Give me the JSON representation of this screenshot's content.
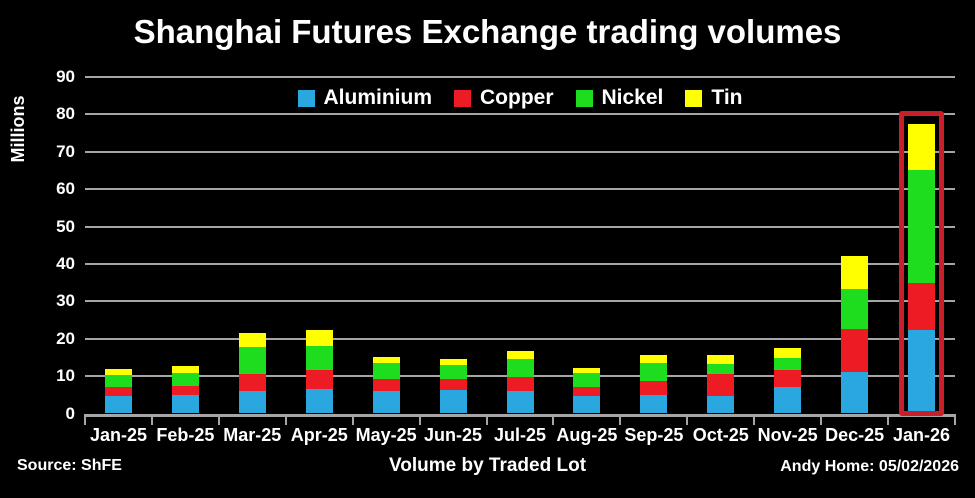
{
  "title": "Shanghai Futures Exchange trading volumes",
  "footer": {
    "source": "Source: ShFE",
    "xlabel": "Volume by Traded Lot",
    "credit": "Andy Home: 05/02/2026"
  },
  "chart_data": {
    "type": "bar",
    "stacked": true,
    "title": "Shanghai Futures Exchange trading volumes",
    "ylabel": "Millions",
    "xlabel": "Volume by Traded Lot",
    "ylim": [
      0,
      90
    ],
    "ytick_step": 10,
    "grid": true,
    "legend_position": "top-center",
    "background_color": "#000000",
    "text_color": "#ffffff",
    "grid_color": "#a6a6a6",
    "categories": [
      "Jan-25",
      "Feb-25",
      "Mar-25",
      "Apr-25",
      "May-25",
      "Jun-25",
      "Jul-25",
      "Aug-25",
      "Sep-25",
      "Oct-25",
      "Nov-25",
      "Dec-25",
      "Jan-26"
    ],
    "series": [
      {
        "name": "Aluminium",
        "color": "#29a7de",
        "values": [
          4.8,
          5.0,
          6.0,
          6.5,
          6.0,
          6.2,
          6.0,
          4.6,
          5.0,
          4.7,
          7.0,
          11.1,
          22.4
        ]
      },
      {
        "name": "Copper",
        "color": "#ed1c24",
        "values": [
          2.2,
          2.4,
          4.6,
          5.1,
          3.1,
          2.9,
          3.7,
          2.6,
          3.7,
          5.8,
          4.6,
          11.4,
          12.5
        ]
      },
      {
        "name": "Nickel",
        "color": "#1edc1e",
        "values": [
          3.2,
          3.4,
          7.1,
          6.4,
          4.3,
          3.8,
          4.8,
          3.7,
          4.9,
          2.7,
          3.3,
          10.7,
          30.2
        ]
      },
      {
        "name": "Tin",
        "color": "#ffff00",
        "values": [
          1.6,
          1.8,
          3.8,
          4.2,
          1.6,
          1.8,
          2.1,
          1.4,
          2.1,
          2.5,
          2.5,
          8.9,
          12.2
        ]
      }
    ],
    "totals": [
      11.8,
      12.6,
      21.5,
      22.2,
      15.0,
      14.7,
      16.6,
      12.3,
      15.7,
      15.7,
      17.4,
      42.1,
      77.3
    ],
    "highlight": {
      "category": "Jan-26",
      "category_index": 12,
      "color": "#c8202a"
    }
  }
}
